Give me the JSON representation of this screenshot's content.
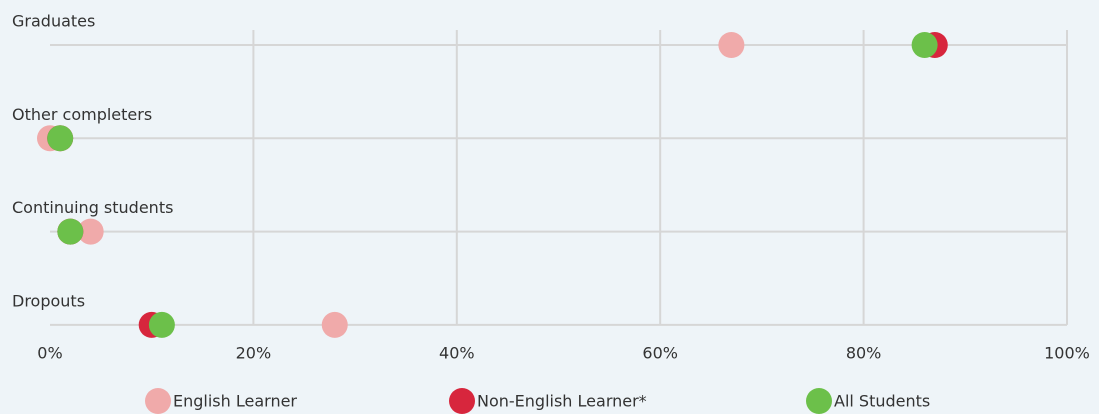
{
  "chart_data": {
    "type": "dot",
    "categories": [
      "Graduates",
      "Other completers",
      "Continuing students",
      "Dropouts"
    ],
    "series": [
      {
        "name": "English Learner",
        "color": "#f0aaaa",
        "values": [
          67,
          0,
          4,
          28
        ]
      },
      {
        "name": "Non-English Learner*",
        "color": "#d7263d",
        "values": [
          87,
          1,
          2,
          10
        ]
      },
      {
        "name": "All Students",
        "color": "#6cc04a",
        "values": [
          86,
          1,
          2,
          11
        ]
      }
    ],
    "xlim": [
      0,
      100
    ],
    "xticks": [
      {
        "value": 0,
        "label": "0%"
      },
      {
        "value": 20,
        "label": "20%"
      },
      {
        "value": 40,
        "label": "40%"
      },
      {
        "value": 60,
        "label": "60%"
      },
      {
        "value": 80,
        "label": "80%"
      },
      {
        "value": 100,
        "label": "100%"
      }
    ],
    "grid": true,
    "legend": "bottom"
  }
}
